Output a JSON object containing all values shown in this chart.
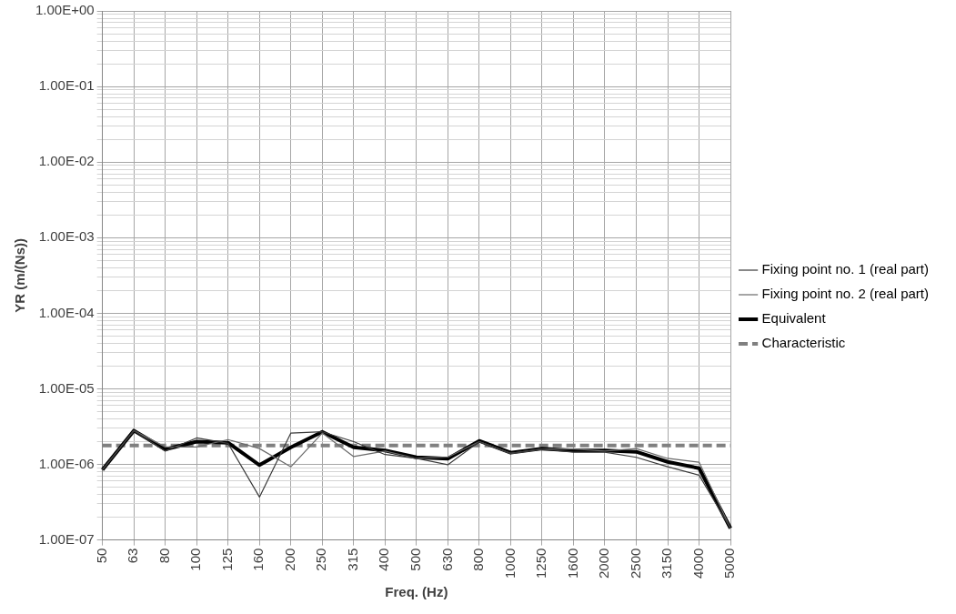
{
  "chart_data": {
    "type": "line",
    "xlabel": "Freq. (Hz)",
    "ylabel": "YR (m/(Ns))",
    "categories": [
      "50",
      "63",
      "80",
      "100",
      "125",
      "160",
      "200",
      "250",
      "315",
      "400",
      "500",
      "630",
      "800",
      "1000",
      "1250",
      "1600",
      "2000",
      "2500",
      "3150",
      "4000",
      "5000"
    ],
    "series": [
      {
        "name": "Fixing point no. 1 (real part)",
        "color": "#3a3a3a",
        "line_style": "solid",
        "values": [
          8.5e-07,
          2.8e-06,
          1.5e-06,
          2.24e-06,
          1.9e-06,
          3.7e-07,
          2.6e-06,
          2.7e-06,
          2e-06,
          1.35e-06,
          1.2e-06,
          9.9e-07,
          2e-06,
          1.4e-06,
          1.6e-06,
          1.45e-06,
          1.45e-06,
          1.24e-06,
          9.3e-07,
          7.2e-07,
          1.43e-07
        ]
      },
      {
        "name": "Fixing point no. 2 (real part)",
        "color": "#6a6a6a",
        "line_style": "solid",
        "values": [
          8.5e-07,
          2.8e-06,
          1.7e-06,
          1.7e-06,
          2.13e-06,
          1.62e-06,
          9.3e-07,
          2.6e-06,
          1.27e-06,
          1.5e-06,
          1.2e-06,
          1.25e-06,
          2e-06,
          1.4e-06,
          1.6e-06,
          1.6e-06,
          1.5e-06,
          1.62e-06,
          1.2e-06,
          1.07e-06,
          1.43e-07
        ]
      },
      {
        "name": "Equivalent",
        "color": "#000000",
        "line_style": "solid",
        "values": [
          8.5e-07,
          2.8e-06,
          1.58e-06,
          2e-06,
          1.94e-06,
          9.8e-07,
          1.68e-06,
          2.7e-06,
          1.68e-06,
          1.53e-06,
          1.24e-06,
          1.19e-06,
          2.05e-06,
          1.43e-06,
          1.62e-06,
          1.53e-06,
          1.53e-06,
          1.47e-06,
          1.08e-06,
          8.9e-07,
          1.43e-07
        ]
      },
      {
        "name": "Characteristic",
        "color": "#808080",
        "line_style": "dashed",
        "values": [
          1.78e-06,
          1.78e-06,
          1.78e-06,
          1.78e-06,
          1.78e-06,
          1.78e-06,
          1.78e-06,
          1.78e-06,
          1.78e-06,
          1.78e-06,
          1.78e-06,
          1.78e-06,
          1.78e-06,
          1.78e-06,
          1.78e-06,
          1.78e-06,
          1.78e-06,
          1.78e-06,
          1.78e-06,
          1.78e-06,
          1.78e-06
        ]
      }
    ],
    "log": "y",
    "ylim": [
      1e-07,
      1
    ],
    "yticks": [
      {
        "value": 1e-07,
        "label": "1.00E-07"
      },
      {
        "value": 2e-07,
        "label": null
      },
      {
        "value": 3e-07,
        "label": null
      },
      {
        "value": 4e-07,
        "label": null
      },
      {
        "value": 5e-07,
        "label": null
      },
      {
        "value": 6e-07,
        "label": null
      },
      {
        "value": 7e-07,
        "label": null
      },
      {
        "value": 8e-07,
        "label": null
      },
      {
        "value": 9e-07,
        "label": null
      },
      {
        "value": 1e-06,
        "label": "1.00E-06"
      },
      {
        "value": 2e-06,
        "label": null
      },
      {
        "value": 3e-06,
        "label": null
      },
      {
        "value": 4e-06,
        "label": null
      },
      {
        "value": 5e-06,
        "label": null
      },
      {
        "value": 6e-06,
        "label": null
      },
      {
        "value": 7e-06,
        "label": null
      },
      {
        "value": 8e-06,
        "label": null
      },
      {
        "value": 9e-06,
        "label": null
      },
      {
        "value": 1e-05,
        "label": "1.00E-05"
      },
      {
        "value": 2e-05,
        "label": null
      },
      {
        "value": 3e-05,
        "label": null
      },
      {
        "value": 4e-05,
        "label": null
      },
      {
        "value": 5e-05,
        "label": null
      },
      {
        "value": 6e-05,
        "label": null
      },
      {
        "value": 7e-05,
        "label": null
      },
      {
        "value": 8e-05,
        "label": null
      },
      {
        "value": 9e-05,
        "label": null
      },
      {
        "value": 0.0001,
        "label": "1.00E-04"
      },
      {
        "value": 0.0002,
        "label": null
      },
      {
        "value": 0.0003,
        "label": null
      },
      {
        "value": 0.0004,
        "label": null
      },
      {
        "value": 0.0005,
        "label": null
      },
      {
        "value": 0.0006,
        "label": null
      },
      {
        "value": 0.0007,
        "label": null
      },
      {
        "value": 0.0008,
        "label": null
      },
      {
        "value": 0.0009,
        "label": null
      },
      {
        "value": 0.001,
        "label": "1.00E-03"
      },
      {
        "value": 0.002,
        "label": null
      },
      {
        "value": 0.003,
        "label": null
      },
      {
        "value": 0.004,
        "label": null
      },
      {
        "value": 0.005,
        "label": null
      },
      {
        "value": 0.006,
        "label": null
      },
      {
        "value": 0.007,
        "label": null
      },
      {
        "value": 0.008,
        "label": null
      },
      {
        "value": 0.009,
        "label": null
      },
      {
        "value": 0.01,
        "label": "1.00E-02"
      },
      {
        "value": 0.02,
        "label": null
      },
      {
        "value": 0.03,
        "label": null
      },
      {
        "value": 0.04,
        "label": null
      },
      {
        "value": 0.05,
        "label": null
      },
      {
        "value": 0.06,
        "label": null
      },
      {
        "value": 0.07,
        "label": null
      },
      {
        "value": 0.08,
        "label": null
      },
      {
        "value": 0.09,
        "label": null
      },
      {
        "value": 0.1,
        "label": "1.00E-01"
      },
      {
        "value": 0.2,
        "label": null
      },
      {
        "value": 0.3,
        "label": null
      },
      {
        "value": 0.4,
        "label": null
      },
      {
        "value": 0.5,
        "label": null
      },
      {
        "value": 0.6,
        "label": null
      },
      {
        "value": 0.7,
        "label": null
      },
      {
        "value": 0.8,
        "label": null
      },
      {
        "value": 0.9,
        "label": null
      },
      {
        "value": 1,
        "label": "1.00E+00"
      }
    ],
    "grid": true,
    "legend": "right",
    "marker": "none"
  }
}
